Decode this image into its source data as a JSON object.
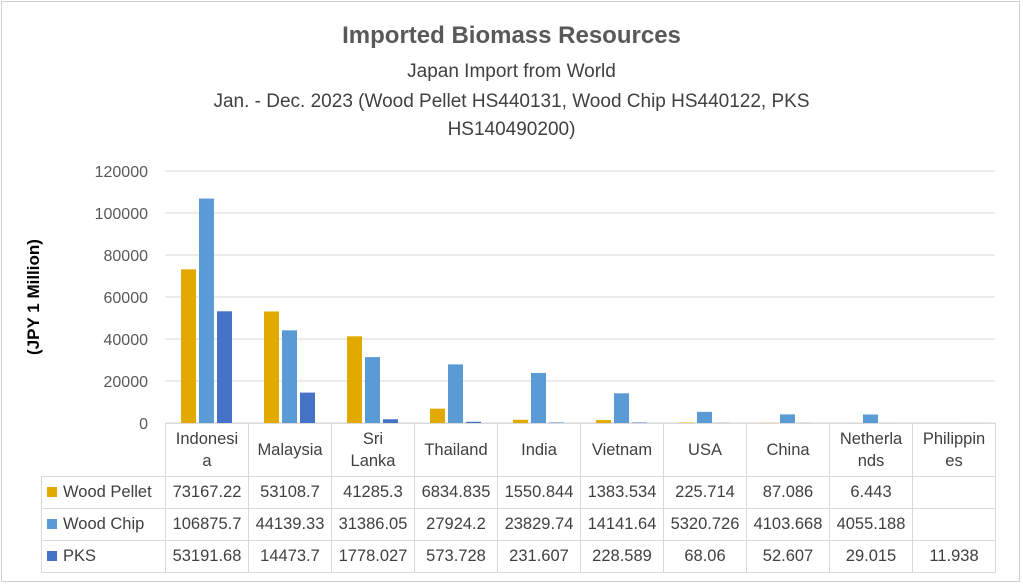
{
  "chart_data": {
    "type": "bar",
    "title": "Imported Biomass Resources",
    "subtitle_lines": [
      "Japan Import from World",
      "Jan. - Dec. 2023 (Wood Pellet HS440131, Wood Chip HS440122, PKS",
      "HS140490200)"
    ],
    "ylabel": "(JPY 1 Million)",
    "ylim": [
      0,
      120000
    ],
    "yticks": [
      "120000",
      "100000",
      "80000",
      "60000",
      "40000",
      "20000",
      "0"
    ],
    "categories": [
      "Indonesia",
      "Malaysia",
      "Sri Lanka",
      "Thailand",
      "India",
      "Vietnam",
      "USA",
      "China",
      "Netherlands",
      "Philippines"
    ],
    "category_display": [
      "Indonesi\na",
      "Malaysia",
      "Sri\nLanka",
      "Thailand",
      "India",
      "Vietnam",
      "USA",
      "China",
      "Netherla\nnds",
      "Philippin\nes"
    ],
    "grid": true,
    "legend": "data table",
    "series": [
      {
        "name": "Wood Pellet",
        "color": "#E2AA00",
        "values": [
          73167.22,
          53108.7,
          41285.3,
          6834.835,
          1550.844,
          1383.534,
          225.714,
          87.086,
          6.443,
          null
        ],
        "labels": [
          "73167.22",
          "53108.7",
          "41285.3",
          "6834.835",
          "1550.844",
          "1383.534",
          "225.714",
          "87.086",
          "6.443",
          ""
        ]
      },
      {
        "name": "Wood Chip",
        "color": "#5B9BD5",
        "values": [
          106875.7,
          44139.33,
          31386.05,
          27924.2,
          23829.74,
          14141.64,
          5320.726,
          4103.668,
          4055.188,
          null
        ],
        "labels": [
          "106875.7",
          "44139.33",
          "31386.05",
          "27924.2",
          "23829.74",
          "14141.64",
          "5320.726",
          "4103.668",
          "4055.188",
          ""
        ]
      },
      {
        "name": "PKS",
        "color": "#4472C4",
        "values": [
          53191.68,
          14473.7,
          1778.027,
          573.728,
          231.607,
          228.589,
          68.06,
          52.607,
          29.015,
          11.938
        ],
        "labels": [
          "53191.68",
          "14473.7",
          "1778.027",
          "573.728",
          "231.607",
          "228.589",
          "68.06",
          "52.607",
          "29.015",
          "11.938"
        ]
      }
    ]
  }
}
